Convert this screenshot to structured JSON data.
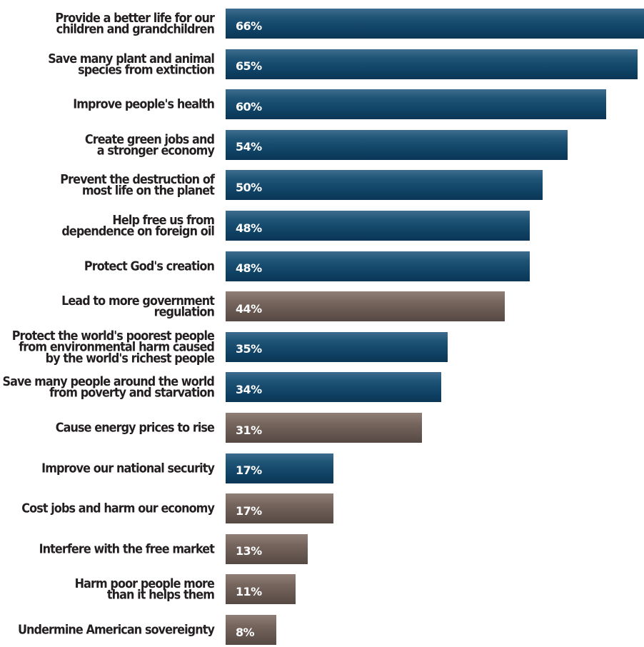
{
  "chart_data": {
    "type": "bar",
    "orientation": "horizontal",
    "categories": [
      "Provide a better life for our\nchildren and grandchildren",
      "Save many plant and animal\nspecies from extinction",
      "Improve people's health",
      "Create green jobs and\na stronger economy",
      "Prevent the destruction of\nmost life on the planet",
      "Help free us from\ndependence on foreign oil",
      "Protect God's creation",
      "Lead to more government regulation",
      "Protect the world's poorest people\nfrom environmental harm caused\nby the world's richest people",
      "Save many people around the world\nfrom poverty and starvation",
      "Cause energy prices to rise",
      "Improve our national security",
      "Cost jobs and harm our economy",
      "Interfere with the free market",
      "Harm poor people more\nthan it helps them",
      "Undermine American sovereignty"
    ],
    "values": [
      66,
      65,
      60,
      54,
      50,
      48,
      48,
      44,
      35,
      34,
      31,
      17,
      17,
      13,
      11,
      8
    ],
    "value_labels": [
      "66%",
      "65%",
      "60%",
      "54%",
      "50%",
      "48%",
      "48%",
      "44%",
      "35%",
      "34%",
      "31%",
      "17%",
      "17%",
      "13%",
      "11%",
      "8%"
    ],
    "bar_types": [
      "benefit",
      "benefit",
      "benefit",
      "benefit",
      "benefit",
      "benefit",
      "benefit",
      "risk",
      "benefit",
      "benefit",
      "risk",
      "benefit",
      "risk",
      "risk",
      "risk",
      "risk"
    ],
    "colors": {
      "benefit": "#0f4264",
      "risk": "#6b5b54"
    },
    "xlim": [
      0,
      66
    ],
    "title": "",
    "xlabel": "",
    "ylabel": "",
    "grid": false,
    "legend": "none"
  }
}
